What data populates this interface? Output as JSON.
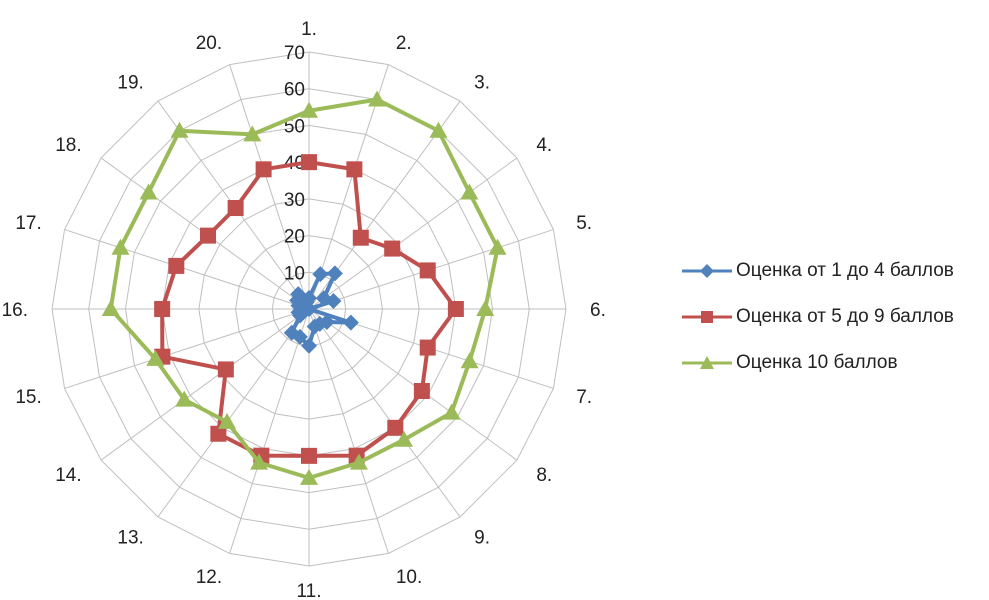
{
  "chart_data": {
    "type": "radar",
    "categories": [
      "1.",
      "2.",
      "3.",
      "4.",
      "5.",
      "6.",
      "7.",
      "8.",
      "9.",
      "10.",
      "11.",
      "12.",
      "13.",
      "14.",
      "15.",
      "16.",
      "17.",
      "18.",
      "19.",
      "20."
    ],
    "rlim": [
      0,
      70
    ],
    "ticks": [
      "0",
      "10",
      "20",
      "30",
      "40",
      "50",
      "60",
      "70"
    ],
    "grid": true,
    "legend_position": "right",
    "series": [
      {
        "name": "Оценка от 1 до 4 баллов",
        "color": "#4F81BD",
        "marker": "diamond",
        "values": [
          3,
          10,
          12,
          5,
          7,
          0,
          12,
          6,
          5,
          5,
          10,
          8,
          8,
          3,
          3,
          0,
          3,
          4,
          5,
          2
        ]
      },
      {
        "name": "Оценка от 5 до 9 баллов",
        "color": "#C0504D",
        "marker": "square",
        "values": [
          40,
          40,
          24,
          28,
          34,
          40,
          34,
          38,
          40,
          42,
          40,
          42,
          42,
          28,
          42,
          40,
          38,
          34,
          34,
          40
        ]
      },
      {
        "name": "Оценка 10 баллов",
        "color": "#9BBB59",
        "marker": "triangle",
        "values": [
          54,
          60,
          60,
          54,
          54,
          48,
          46,
          48,
          44,
          44,
          46,
          44,
          38,
          42,
          44,
          54,
          54,
          54,
          60,
          50
        ]
      }
    ]
  }
}
